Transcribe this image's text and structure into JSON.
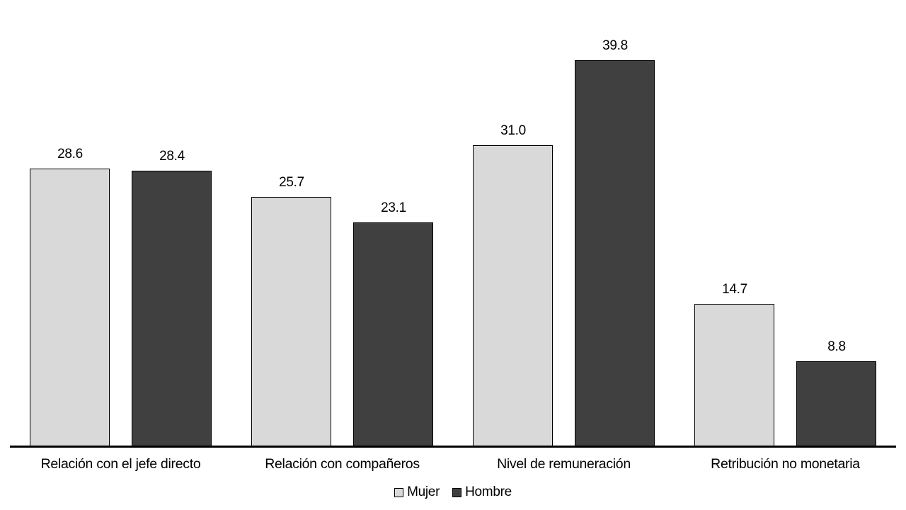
{
  "chart_data": {
    "type": "bar",
    "title": "",
    "xlabel": "",
    "ylabel": "",
    "categories": [
      "Relación con el jefe directo",
      "Relación con compañeros",
      "Nivel de remuneración",
      "Retribución no monetaria"
    ],
    "series": [
      {
        "name": "Mujer",
        "color": "#d9d9d9",
        "border_color": "#000000",
        "values": [
          28.6,
          25.7,
          31.0,
          14.7
        ]
      },
      {
        "name": "Hombre",
        "color": "#404040",
        "border_color": "#000000",
        "values": [
          28.4,
          23.1,
          39.8,
          8.8
        ]
      }
    ],
    "value_labels": {
      "Mujer": [
        "28.6",
        "25.7",
        "31.0",
        "14.7"
      ],
      "Hombre": [
        "28.4",
        "23.1",
        "39.8",
        "8.8"
      ]
    },
    "ylim": [
      0,
      43.7
    ],
    "grid": false,
    "y_axis_visible": false,
    "x_axis_line_color": "#000000",
    "legend_position": "bottom-center",
    "background_color": "#ffffff",
    "text_color": "#000000"
  }
}
